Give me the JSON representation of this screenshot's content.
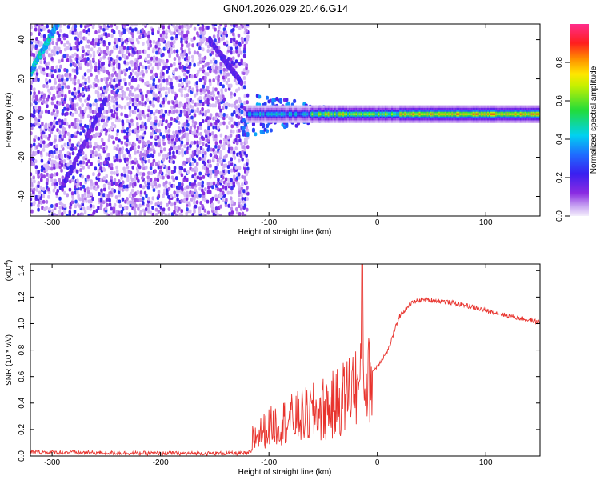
{
  "title": "GN04.2026.029.20.46.G14",
  "chart_data": [
    {
      "type": "heatmap",
      "xlabel": "Height of straight line (km)",
      "ylabel": "Frequency (Hz)",
      "xlim": [
        -320,
        150
      ],
      "ylim": [
        -50,
        48
      ],
      "xticks": [
        -300,
        -200,
        -100,
        0,
        100
      ],
      "yticks": [
        -40,
        -20,
        0,
        20,
        40
      ],
      "colorbar": {
        "label": "Normalized spectral amplitude",
        "range": [
          0,
          1
        ],
        "ticks": [
          "0.0",
          "0.2",
          "0.4",
          "0.6",
          "0.8"
        ],
        "colormap": "rainbow (purple → blue → cyan → green → yellow → red → magenta)"
      },
      "features": {
        "noise_region_x": [
          -320,
          -120
        ],
        "main_line_frequency_hz": 2,
        "main_line_start_x": -120,
        "peak_region_x": [
          -60,
          120
        ],
        "diagonal_stripes": [
          {
            "x": [
              -320,
              -295
            ],
            "y": [
              23,
              48
            ]
          },
          {
            "x": [
              -290,
              -250
            ],
            "y": [
              -35,
              10
            ]
          },
          {
            "x": [
              -155,
              -125
            ],
            "y": [
              40,
              18
            ]
          }
        ]
      },
      "grid": false
    },
    {
      "type": "line",
      "xlabel": "Height of straight line (km)",
      "ylabel": "SNR (10 * v/v)",
      "yscale_label": "(x10^4)",
      "xlim": [
        -320,
        150
      ],
      "ylim": [
        0,
        1.45
      ],
      "xticks": [
        -300,
        -200,
        -100,
        0,
        100
      ],
      "yticks": [
        0.0,
        0.2,
        0.4,
        0.6,
        0.8,
        1.0,
        1.2,
        1.4
      ],
      "series": [
        {
          "color": "#e8332d",
          "x": [
            -320,
            -200,
            -120,
            -112,
            -100,
            -80,
            -60,
            -40,
            -30,
            -22,
            -18,
            -14,
            -10,
            0,
            10,
            20,
            30,
            40,
            60,
            80,
            100,
            120,
            150
          ],
          "y": [
            0.03,
            0.02,
            0.02,
            0.05,
            0.18,
            0.22,
            0.22,
            0.28,
            0.4,
            0.62,
            0.5,
            0.6,
            0.58,
            0.68,
            0.8,
            1.05,
            1.15,
            1.18,
            1.17,
            1.14,
            1.1,
            1.06,
            1.01
          ]
        }
      ],
      "annotations": {
        "spike_x": -14,
        "spike_peak": 1.45,
        "noise_band_x": [
          -115,
          -5
        ]
      },
      "grid": false
    }
  ]
}
